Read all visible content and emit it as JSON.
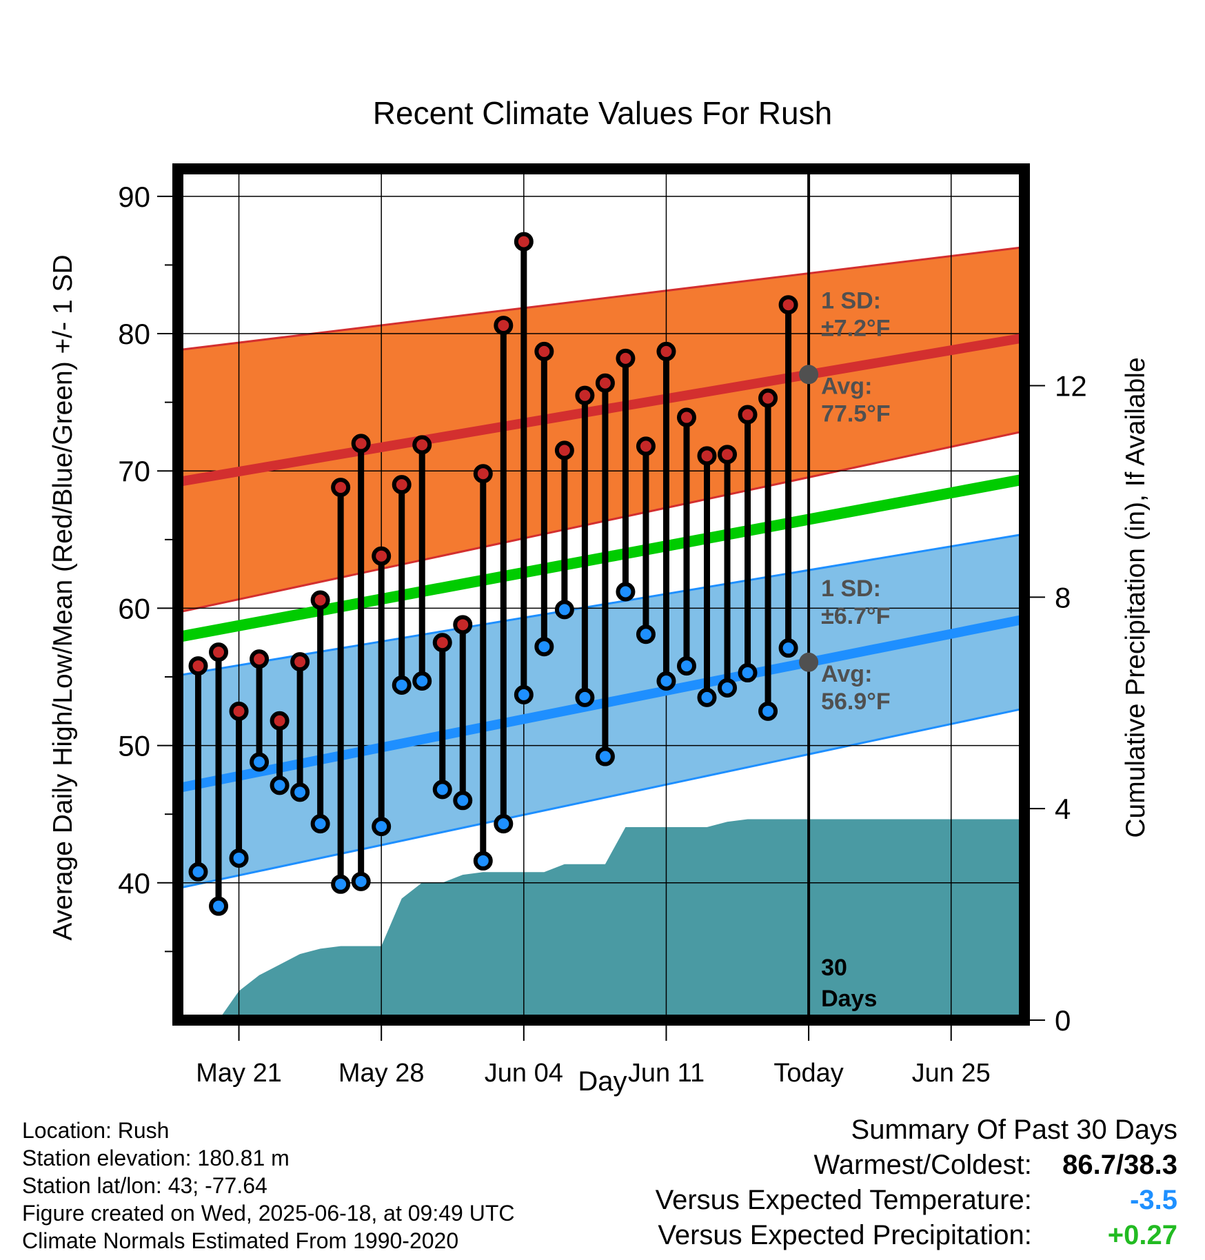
{
  "chart_data": {
    "type": "line",
    "title": "Recent Climate Values For Rush",
    "xlabel": "Day",
    "ylabel": "Average Daily High/Low/Mean (Red/Blue/Green) +/- 1 SD",
    "ylabel_right": "Cumulative Precipitation (in), If Available",
    "x_ticks": [
      "May 21",
      "May 28",
      "Jun 04",
      "Jun 11",
      "Today",
      "Jun 25"
    ],
    "x_tick_days": [
      3,
      10,
      17,
      24,
      31,
      38
    ],
    "x_range_days": [
      0,
      41.6
    ],
    "ylim": [
      30,
      92
    ],
    "yticks": [
      40,
      50,
      60,
      70,
      80,
      90
    ],
    "y2lim": [
      0,
      16.1
    ],
    "y2ticks": [
      0,
      4,
      8,
      12
    ],
    "days": [
      1,
      2,
      3,
      4,
      5,
      6,
      7,
      8,
      9,
      10,
      11,
      12,
      13,
      14,
      15,
      16,
      17,
      18,
      19,
      20,
      21,
      22,
      23,
      24,
      25,
      26,
      27,
      28,
      29,
      30
    ],
    "series": [
      {
        "name": "High",
        "color": "#c62828",
        "values": [
          55.8,
          56.8,
          52.5,
          56.3,
          51.8,
          56.1,
          60.6,
          68.8,
          72.0,
          63.8,
          69.0,
          71.9,
          57.5,
          58.8,
          69.8,
          80.6,
          86.7,
          78.7,
          71.5,
          75.5,
          76.4,
          78.2,
          71.8,
          78.7,
          73.9,
          71.1,
          71.2,
          74.1,
          75.3,
          82.1
        ]
      },
      {
        "name": "Low",
        "color": "#1e90ff",
        "values": [
          40.8,
          38.3,
          41.8,
          48.8,
          47.1,
          46.6,
          44.3,
          39.9,
          40.1,
          44.1,
          54.4,
          54.7,
          46.8,
          46.0,
          41.6,
          44.3,
          53.7,
          57.2,
          59.9,
          53.5,
          49.2,
          61.2,
          58.1,
          54.7,
          55.8,
          53.5,
          54.2,
          55.3,
          52.5,
          57.1
        ]
      }
    ],
    "normals": {
      "high_avg": [
        69.2,
        79.7
      ],
      "high_sd_upper": [
        78.8,
        86.3
      ],
      "high_sd_lower": [
        59.7,
        72.9
      ],
      "mean_avg": [
        57.9,
        69.4
      ],
      "low_avg": [
        46.9,
        59.2
      ],
      "low_sd_upper": [
        55.1,
        65.4
      ],
      "low_sd_lower": [
        39.6,
        52.7
      ]
    },
    "precip_cumulative": [
      [
        2.0,
        0.0
      ],
      [
        3.0,
        0.55
      ],
      [
        4.0,
        0.85
      ],
      [
        5.0,
        1.05
      ],
      [
        6.0,
        1.25
      ],
      [
        7.0,
        1.35
      ],
      [
        8.0,
        1.4
      ],
      [
        9.0,
        1.4
      ],
      [
        10.0,
        1.4
      ],
      [
        11.0,
        2.3
      ],
      [
        12.0,
        2.6
      ],
      [
        13.0,
        2.6
      ],
      [
        14.0,
        2.75
      ],
      [
        15.0,
        2.8
      ],
      [
        16.0,
        2.8
      ],
      [
        17.0,
        2.8
      ],
      [
        18.0,
        2.8
      ],
      [
        19.0,
        2.95
      ],
      [
        20.0,
        2.95
      ],
      [
        21.0,
        2.95
      ],
      [
        22.0,
        3.65
      ],
      [
        23.0,
        3.65
      ],
      [
        24.0,
        3.65
      ],
      [
        25.0,
        3.65
      ],
      [
        26.0,
        3.65
      ],
      [
        27.0,
        3.75
      ],
      [
        28.0,
        3.8
      ],
      [
        29.0,
        3.8
      ],
      [
        30.0,
        3.8
      ],
      [
        31.0,
        3.8
      ],
      [
        41.6,
        3.8
      ]
    ],
    "today_day": 31,
    "annotations": {
      "high_sd_label": "1 SD:",
      "high_sd_value": "±7.2°F",
      "high_avg_label": "Avg:",
      "high_avg_value": "77.5°F",
      "low_sd_label": "1 SD:",
      "low_sd_value": "±6.7°F",
      "low_avg_label": "Avg:",
      "low_avg_value": "56.9°F",
      "days_line1": "30",
      "days_line2": "Days"
    },
    "colors": {
      "high_band": "#f47a30",
      "high_line": "#d32f2f",
      "low_band": "#80bfe8",
      "low_line": "#1e8fff",
      "mean_line": "#00cc00",
      "precip": "#4a9aa3",
      "high_dot": "#c62828",
      "low_dot": "#1e90ff",
      "annotation": "#505050"
    }
  },
  "footer": {
    "location": "Location: Rush",
    "elevation": "Station elevation: 180.81 m",
    "latlon": "Station lat/lon: 43; -77.64",
    "created": "Figure created on Wed, 2025-06-18, at 09:49 UTC",
    "normals": "Climate Normals Estimated From 1990-2020"
  },
  "summary": {
    "title": "Summary Of Past 30 Days",
    "warm_cold_label": "Warmest/Coldest:",
    "warm_cold_value": "86.7/38.3",
    "temp_label": "Versus Expected Temperature:",
    "temp_value": "-3.5",
    "temp_color": "#1e90ff",
    "precip_label": "Versus Expected Precipitation:",
    "precip_value": "+0.27",
    "precip_color": "#22bb22"
  }
}
